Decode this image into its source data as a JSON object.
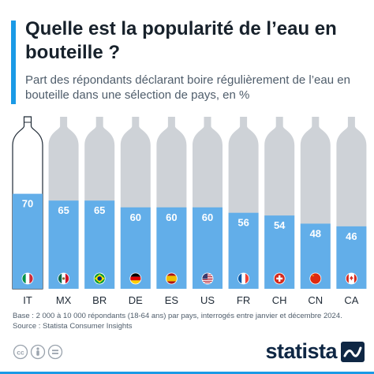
{
  "title": "Quelle est la popularité de l’eau en bouteille ?",
  "subtitle": "Part des répondants déclarant boire régulièrement de l’eau en bouteille dans une sélection de pays, en %",
  "footnote": {
    "base": "Base : 2 000 à 10 000 répondants (18-64 ans) par pays, interrogés entre janvier et décembre 2024.",
    "source": "Source : Statista Consumer Insights"
  },
  "brand": {
    "name": "statista"
  },
  "license": {
    "icons": [
      "creative-commons-icon",
      "attribution-icon",
      "equals-icon"
    ]
  },
  "colors": {
    "accent": "#1a9ae6",
    "bar_fill": "#62aee9",
    "bar_empty": "#ced2d7",
    "brand": "#0f2744"
  },
  "chart_data": {
    "type": "bar",
    "title": "Quelle est la popularité de l’eau en bouteille ?",
    "subtitle": "Part des répondants déclarant boire régulièrement de l’eau en bouteille dans une sélection de pays, en %",
    "unit": "%",
    "ylim": [
      0,
      100
    ],
    "categories": [
      "IT",
      "MX",
      "BR",
      "DE",
      "ES",
      "US",
      "FR",
      "CH",
      "CN",
      "CA"
    ],
    "values": [
      70,
      65,
      65,
      60,
      60,
      60,
      56,
      54,
      48,
      46
    ],
    "flags": [
      "flag-italy-icon",
      "flag-mexico-icon",
      "flag-brazil-icon",
      "flag-germany-icon",
      "flag-spain-icon",
      "flag-usa-icon",
      "flag-france-icon",
      "flag-switzerland-icon",
      "flag-china-icon",
      "flag-canada-icon"
    ],
    "highlight": "IT"
  }
}
